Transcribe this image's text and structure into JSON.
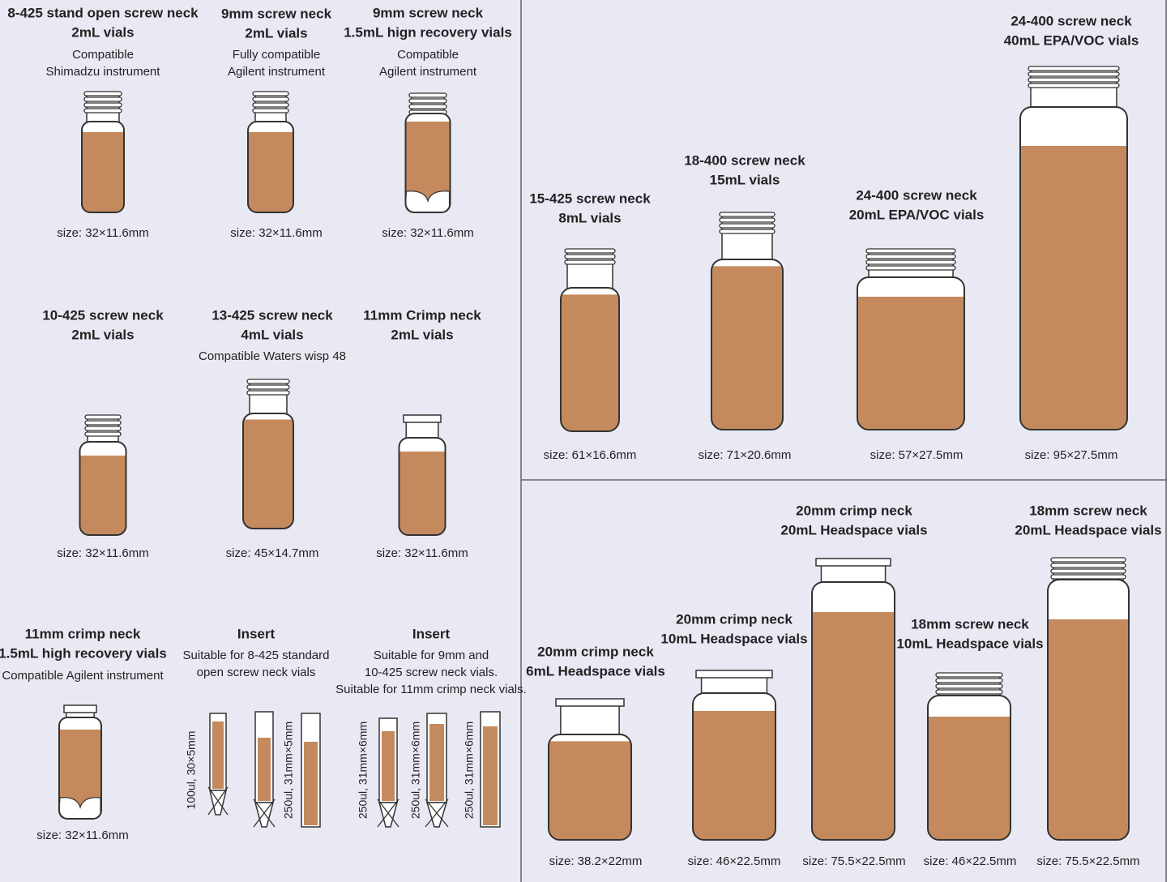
{
  "left_panel": {
    "items": [
      {
        "title": [
          "8-425 stand open screw neck",
          "2mL vials"
        ],
        "note": [
          "Compatible",
          "Shimadzu instrument"
        ],
        "size": "size: 32×11.6mm"
      },
      {
        "title": [
          "9mm screw neck",
          "2mL vials"
        ],
        "note": [
          "Fully compatible",
          "Agilent instrument"
        ],
        "size": "size: 32×11.6mm"
      },
      {
        "title": [
          "9mm screw neck",
          "1.5mL hign recovery vials"
        ],
        "note": [
          "Compatible",
          "Agilent instrument"
        ],
        "size": "size: 32×11.6mm"
      },
      {
        "title": [
          "10-425 screw neck",
          "2mL vials"
        ],
        "size": "size: 32×11.6mm"
      },
      {
        "title": [
          "13-425 screw neck",
          "4mL vials"
        ],
        "note": [
          "Compatible Waters wisp 48"
        ],
        "size": "size: 45×14.7mm"
      },
      {
        "title": [
          "11mm Crimp neck",
          "2mL vials"
        ],
        "size": "size: 32×11.6mm"
      },
      {
        "title": [
          "11mm crimp neck",
          "1.5mL high recovery vials"
        ],
        "note": [
          "Compatible Agilent instrument"
        ],
        "size": "size: 32×11.6mm"
      },
      {
        "title": [
          "Insert"
        ],
        "note": [
          "Suitable for 8-425 standard",
          "open screw neck vials"
        ],
        "insert_labels": [
          "100ul, 30×5mm",
          "250ul, 31mm×5mm"
        ]
      },
      {
        "title": [
          "Insert"
        ],
        "note": [
          "Suitable for 9mm and",
          "10-425 screw neck vials.",
          "Suitable for 11mm crimp neck vials."
        ],
        "insert_labels": [
          "250ul, 31mm×6mm",
          "250ul, 31mm×6mm",
          "250ul, 31mm×6mm"
        ]
      }
    ]
  },
  "right_top_panel": {
    "items": [
      {
        "title": [
          "15-425 screw neck",
          "8mL vials"
        ],
        "size": "size: 61×16.6mm"
      },
      {
        "title": [
          "18-400 screw neck",
          "15mL vials"
        ],
        "size": "size: 71×20.6mm"
      },
      {
        "title": [
          "24-400 screw neck",
          "20mL EPA/VOC vials"
        ],
        "size": "size: 57×27.5mm"
      },
      {
        "title": [
          "24-400 screw neck",
          "40mL EPA/VOC vials"
        ],
        "size": "size: 95×27.5mm"
      }
    ]
  },
  "right_bottom_panel": {
    "items": [
      {
        "title": [
          "20mm crimp neck",
          "6mL Headspace vials"
        ],
        "size": "size: 38.2×22mm"
      },
      {
        "title": [
          "20mm crimp neck",
          "10mL Headspace vials"
        ],
        "size": "size: 46×22.5mm"
      },
      {
        "title": [
          "20mm crimp neck",
          "20mL Headspace vials"
        ],
        "size": "size: 75.5×22.5mm"
      },
      {
        "title": [
          "18mm screw neck",
          "10mL Headspace vials"
        ],
        "size": "size: 46×22.5mm"
      },
      {
        "title": [
          "18mm screw neck",
          "20mL Headspace vials"
        ],
        "size": "size: 75.5×22.5mm"
      }
    ]
  }
}
